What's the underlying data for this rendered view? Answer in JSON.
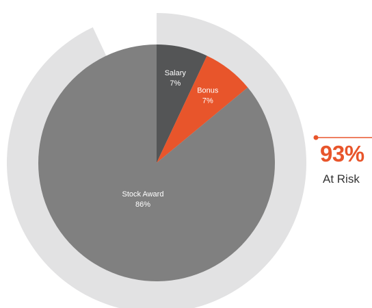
{
  "chart_data": {
    "type": "pie",
    "slices": [
      {
        "label": "Salary",
        "value": 7,
        "value_label": "7%",
        "color": "#545556"
      },
      {
        "label": "Bonus",
        "value": 7,
        "value_label": "7%",
        "color": "#e8552b"
      },
      {
        "label": "Stock Award",
        "value": 86,
        "value_label": "86%",
        "color": "#808080"
      }
    ],
    "outer_ring": {
      "value": 93,
      "color": "#e2e2e3"
    },
    "start_angle_deg": 0,
    "direction": "clockwise"
  },
  "callout": {
    "value": "93%",
    "label": "At Risk",
    "accent_color": "#e8552b"
  }
}
